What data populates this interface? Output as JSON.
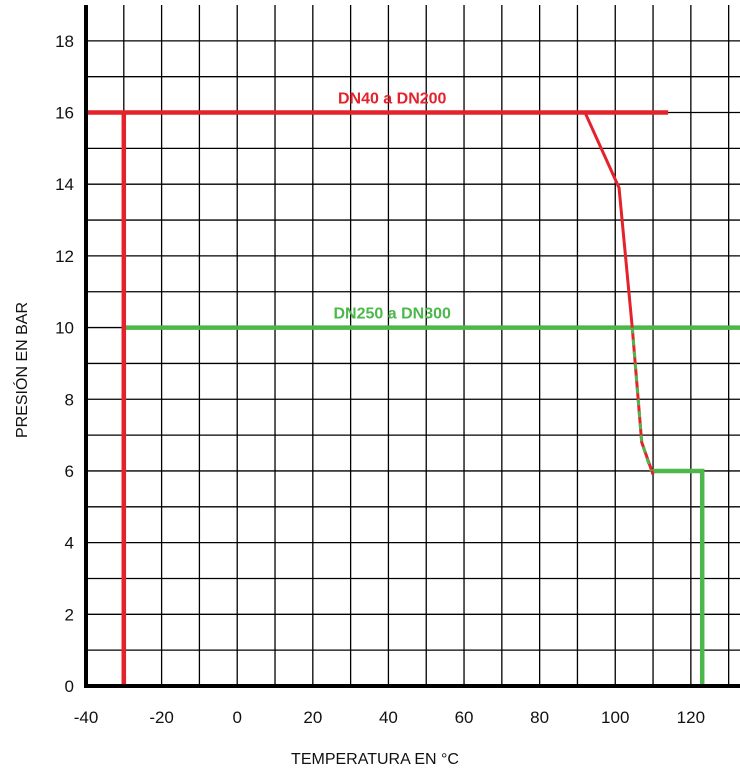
{
  "chart_data": {
    "type": "line",
    "xlabel": "TEMPERATURA  EN °C",
    "ylabel": "PRESIÓN   EN BAR",
    "xlim": [
      -40,
      133
    ],
    "ylim": [
      0,
      19
    ],
    "x_ticks": [
      -40,
      -20,
      0,
      20,
      40,
      60,
      80,
      100,
      120
    ],
    "y_ticks": [
      0,
      2,
      4,
      6,
      8,
      10,
      12,
      14,
      16,
      18
    ],
    "grid": true,
    "series": [
      {
        "name": "DN40 a DN200",
        "color": "#e3222b",
        "points": [
          [
            -30,
            0
          ],
          [
            -30,
            16
          ],
          [
            -40,
            16
          ],
          [
            114,
            16
          ]
        ],
        "curve": [
          [
            92,
            16
          ],
          [
            101,
            13.9
          ],
          [
            104.5,
            10
          ],
          [
            107,
            6.8
          ],
          [
            110,
            5.9
          ]
        ]
      },
      {
        "name": "DN250 a DN300",
        "color": "#4cb74a",
        "points": [
          [
            -30,
            0
          ],
          [
            -30,
            10
          ],
          [
            133,
            10
          ]
        ],
        "curve": [
          [
            104.5,
            10
          ],
          [
            107,
            6.8
          ],
          [
            109.5,
            6
          ]
        ],
        "step": [
          [
            109.5,
            6
          ],
          [
            123,
            6
          ],
          [
            123,
            0
          ]
        ]
      }
    ]
  }
}
